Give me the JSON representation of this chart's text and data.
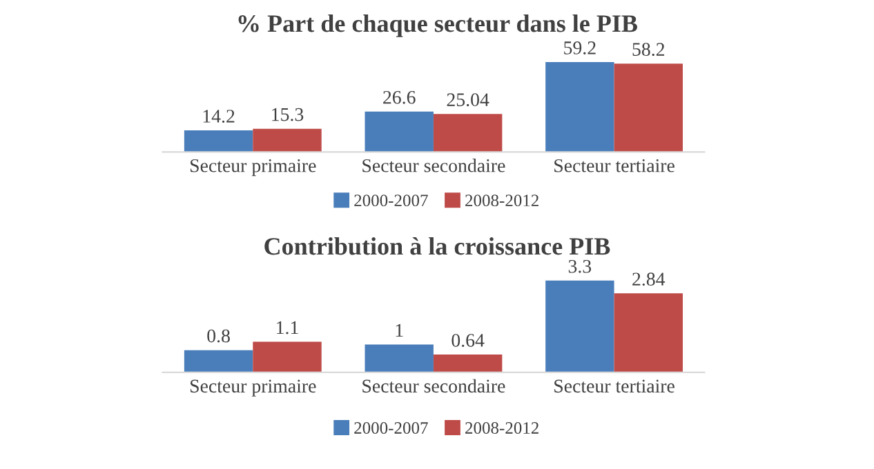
{
  "chart_data": [
    {
      "type": "bar",
      "title": "% Part de chaque secteur dans le PIB",
      "categories": [
        "Secteur primaire",
        "Secteur secondaire",
        "Secteur tertiaire"
      ],
      "series": [
        {
          "name": "2000-2007",
          "color": "#4a7ebb",
          "values": [
            14.2,
            26.6,
            59.2
          ]
        },
        {
          "name": "2008-2012",
          "color": "#be4b48",
          "values": [
            15.3,
            25.04,
            58.2
          ]
        }
      ],
      "data_labels": true,
      "legend": "bottom",
      "tick_labels": "x",
      "grid": false
    },
    {
      "type": "bar",
      "title": "Contribution à la croissance PIB",
      "categories": [
        "Secteur primaire",
        "Secteur secondaire",
        "Secteur tertiaire"
      ],
      "series": [
        {
          "name": "2000-2007",
          "color": "#4a7ebb",
          "values": [
            0.8,
            1,
            3.3
          ]
        },
        {
          "name": "2008-2012",
          "color": "#be4b48",
          "values": [
            1.1,
            0.64,
            2.84
          ]
        }
      ],
      "data_labels": true,
      "legend": "bottom",
      "tick_labels": "x",
      "grid": false
    }
  ]
}
